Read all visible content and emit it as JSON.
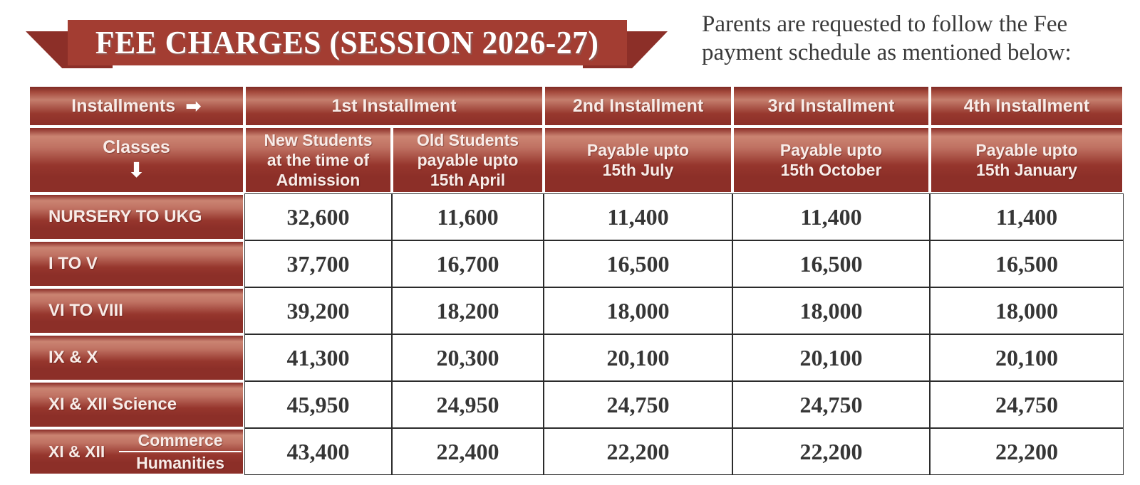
{
  "banner": {
    "title": "FEE CHARGES (SESSION 2026-27)"
  },
  "intro": {
    "text": "Parents are requested to follow the Fee\npayment schedule as mentioned below:"
  },
  "table": {
    "corner": {
      "installments_label": "Installments",
      "classes_label": "Classes"
    },
    "icons": {
      "right_arrow": "➡",
      "down_arrow": "⬇"
    },
    "installment_headers": [
      "1st Installment",
      "2nd Installment",
      "3rd Installment",
      "4th Installment"
    ],
    "sub_headers": [
      "New Students\nat the time of\nAdmission",
      "Old Students\npayable upto\n15th April",
      "Payable upto\n15th July",
      "Payable upto\n15th October",
      "Payable upto\n15th January"
    ],
    "rows": [
      {
        "class_label": "NURSERY TO UKG",
        "values": [
          "32,600",
          "11,600",
          "11,400",
          "11,400",
          "11,400"
        ]
      },
      {
        "class_label": "I TO V",
        "values": [
          "37,700",
          "16,700",
          "16,500",
          "16,500",
          "16,500"
        ]
      },
      {
        "class_label": "VI TO VIII",
        "values": [
          "39,200",
          "18,200",
          "18,000",
          "18,000",
          "18,000"
        ]
      },
      {
        "class_label": "IX & X",
        "values": [
          "41,300",
          "20,300",
          "20,100",
          "20,100",
          "20,100"
        ]
      },
      {
        "class_label": "XI & XII Science",
        "values": [
          "45,950",
          "24,950",
          "24,750",
          "24,750",
          "24,750"
        ]
      },
      {
        "class_prefix": "XI & XII",
        "class_stack_top": "Commerce",
        "class_stack_bottom": "Humanities",
        "values": [
          "43,400",
          "22,400",
          "22,200",
          "22,200",
          "22,200"
        ]
      }
    ],
    "colors": {
      "dark_red": "#8C2F28",
      "light_salmon": "#CB8472",
      "ribbon_main": "#A33D32",
      "ribbon_fold": "#8C2F28",
      "number_text": "#363636",
      "header_text": "#F8ECE8"
    }
  }
}
